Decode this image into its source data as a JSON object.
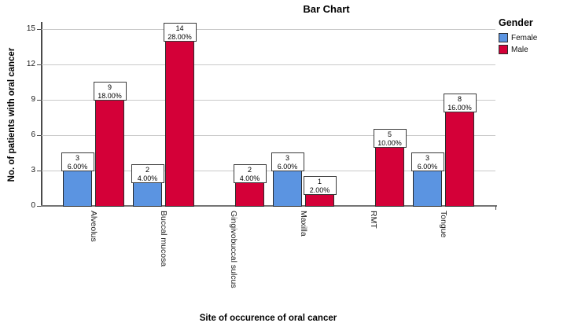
{
  "title": "Bar Chart",
  "y_axis": {
    "label": "No. of patients with oral cancer",
    "ticks": [
      0,
      3,
      6,
      9,
      12,
      15
    ]
  },
  "x_axis": {
    "label": "Site of occurence of oral cancer"
  },
  "legend": {
    "title": "Gender",
    "items": [
      {
        "label": "Female",
        "color": "#5b94e1"
      },
      {
        "label": "Male",
        "color": "#d40038"
      }
    ]
  },
  "chart_data": {
    "type": "bar",
    "title": "Bar Chart",
    "xlabel": "Site of occurence of oral cancer",
    "ylabel": "No. of patients with oral cancer",
    "ylim": [
      0,
      15
    ],
    "yticks": [
      0,
      3,
      6,
      9,
      12,
      15
    ],
    "grid": true,
    "legend_position": "top-right",
    "categories": [
      "Alveolus",
      "Buccal mucosa",
      "Gingivobuccal sulcus",
      "Maxilla",
      "RMT",
      "Tongue"
    ],
    "series": [
      {
        "name": "Female",
        "color": "#5b94e1",
        "values": [
          3,
          2,
          null,
          3,
          null,
          3
        ],
        "percent_labels": [
          "6.00%",
          "4.00%",
          null,
          "6.00%",
          null,
          "6.00%"
        ]
      },
      {
        "name": "Male",
        "color": "#d40038",
        "values": [
          9,
          14,
          2,
          1,
          5,
          8
        ],
        "percent_labels": [
          "18.00%",
          "28.00%",
          "4.00%",
          "2.00%",
          "10.00%",
          "16.00%"
        ]
      }
    ]
  }
}
